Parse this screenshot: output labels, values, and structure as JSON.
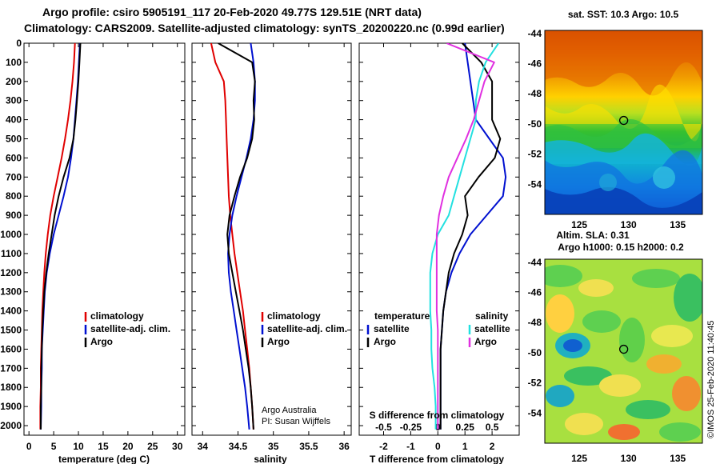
{
  "header": {
    "line1": "Argo profile: csiro 5905191_117 20-Feb-2020 49.77S 129.51E (NRT data)",
    "line2": "Climatology: CARS2009. Satellite-adjusted climatology: synTS_20200220.nc (0.99d earlier)"
  },
  "colors": {
    "climatology": "#e00000",
    "satellite": "#0010d0",
    "argo": "#000000",
    "sat_salinity": "#22e0e0",
    "argo_salinity": "#e030e0"
  },
  "credits": {
    "line1": "Argo Australia",
    "line2": "PI: Susan Wijffels"
  },
  "stamp": "©IMOS 25-Feb-2020 11:40:45",
  "chart_data": [
    {
      "type": "line",
      "id": "temperature",
      "xlabel": "temperature (deg C)",
      "ylabel": "",
      "xlim": [
        -1,
        31.5
      ],
      "ylim": [
        2050,
        0
      ],
      "xticks": [
        "0",
        "5",
        "10",
        "15",
        "20",
        "25",
        "30"
      ],
      "xtick_values": [
        0,
        5,
        10,
        15,
        20,
        25,
        30
      ],
      "yticks": [
        "0",
        "100",
        "200",
        "300",
        "400",
        "500",
        "600",
        "700",
        "800",
        "900",
        "1000",
        "1100",
        "1200",
        "1300",
        "1400",
        "1500",
        "1600",
        "1700",
        "1800",
        "1900",
        "2000"
      ],
      "ytick_values": [
        0,
        100,
        200,
        300,
        400,
        500,
        600,
        700,
        800,
        900,
        1000,
        1100,
        1200,
        1300,
        1400,
        1500,
        1600,
        1700,
        1800,
        1900,
        2000
      ],
      "legend": [
        "climatology",
        "satellite-adj. clim.",
        "Argo"
      ],
      "series": [
        {
          "name": "climatology",
          "color": "#e00000",
          "x": [
            9.3,
            9.1,
            8.8,
            8.4,
            7.9,
            7.3,
            6.6,
            5.8,
            5.0,
            4.3,
            3.8,
            3.4,
            3.1,
            2.9,
            2.7,
            2.6,
            2.5,
            2.4,
            2.4,
            2.3,
            2.3
          ],
          "y": [
            0,
            100,
            200,
            300,
            400,
            500,
            600,
            700,
            800,
            900,
            1000,
            1100,
            1200,
            1300,
            1400,
            1500,
            1600,
            1700,
            1800,
            1900,
            2020
          ]
        },
        {
          "name": "satellite-adj. clim.",
          "color": "#0010d0",
          "x": [
            10.3,
            10.1,
            9.9,
            9.6,
            9.3,
            9.0,
            8.5,
            7.9,
            7.0,
            6.0,
            5.0,
            4.2,
            3.6,
            3.2,
            3.0,
            2.8,
            2.6,
            2.6,
            2.5,
            2.5,
            2.4
          ],
          "y": [
            0,
            100,
            200,
            300,
            400,
            500,
            600,
            700,
            800,
            900,
            1000,
            1100,
            1200,
            1300,
            1400,
            1500,
            1600,
            1700,
            1800,
            1900,
            2020
          ]
        },
        {
          "name": "Argo",
          "color": "#000000",
          "x": [
            10.4,
            10.2,
            10.0,
            9.7,
            9.4,
            9.0,
            8.2,
            7.0,
            6.0,
            5.2,
            4.6,
            4.0,
            3.5,
            3.1,
            2.9,
            2.7,
            2.6,
            2.5,
            2.5,
            2.4,
            2.4
          ],
          "y": [
            0,
            100,
            200,
            300,
            400,
            500,
            600,
            700,
            800,
            900,
            1000,
            1100,
            1200,
            1300,
            1400,
            1500,
            1600,
            1700,
            1800,
            1900,
            2020
          ]
        }
      ]
    },
    {
      "type": "line",
      "id": "salinity",
      "xlabel": "salinity",
      "ylabel": "",
      "xlim": [
        33.85,
        36.1
      ],
      "ylim": [
        2050,
        0
      ],
      "xticks": [
        "34",
        "34.5",
        "35",
        "35.5",
        "36"
      ],
      "xtick_values": [
        34,
        34.5,
        35,
        35.5,
        36
      ],
      "legend": [
        "climatology",
        "satellite-adj. clim.",
        "Argo"
      ],
      "series": [
        {
          "name": "climatology",
          "color": "#e00000",
          "x": [
            34.12,
            34.18,
            34.3,
            34.32,
            34.33,
            34.34,
            34.35,
            34.36,
            34.37,
            34.39,
            34.42,
            34.45,
            34.49,
            34.53,
            34.57,
            34.6,
            34.63,
            34.66,
            34.68,
            34.7,
            34.72
          ],
          "y": [
            0,
            100,
            200,
            300,
            400,
            500,
            600,
            700,
            800,
            900,
            1000,
            1100,
            1200,
            1300,
            1400,
            1500,
            1600,
            1700,
            1800,
            1900,
            2020
          ]
        },
        {
          "name": "satellite-adj. clim.",
          "color": "#0010d0",
          "x": [
            34.68,
            34.72,
            34.74,
            34.74,
            34.72,
            34.68,
            34.62,
            34.55,
            34.48,
            34.42,
            34.38,
            34.36,
            34.37,
            34.4,
            34.44,
            34.48,
            34.52,
            34.56,
            34.6,
            34.63,
            34.66
          ],
          "y": [
            0,
            100,
            200,
            300,
            400,
            500,
            600,
            700,
            800,
            900,
            1000,
            1100,
            1200,
            1300,
            1400,
            1500,
            1600,
            1700,
            1800,
            1900,
            2020
          ]
        },
        {
          "name": "Argo",
          "color": "#000000",
          "x": [
            34.22,
            34.7,
            34.74,
            34.72,
            34.73,
            34.7,
            34.63,
            34.53,
            34.45,
            34.38,
            34.35,
            34.37,
            34.42,
            34.47,
            34.52,
            34.57,
            34.61,
            34.65,
            34.68,
            34.7,
            34.72
          ],
          "y": [
            0,
            100,
            200,
            300,
            400,
            500,
            600,
            700,
            800,
            900,
            1000,
            1100,
            1200,
            1300,
            1400,
            1500,
            1600,
            1700,
            1800,
            1900,
            2020
          ]
        }
      ]
    },
    {
      "type": "line",
      "id": "difference",
      "xlabel": "T difference from climatology",
      "xlabel2": "S difference from climatology",
      "xlim": [
        -2.9,
        3.0
      ],
      "ylim": [
        2050,
        0
      ],
      "xticks": [
        "-2",
        "-1",
        "0",
        "1",
        "2"
      ],
      "xtick_values": [
        -2,
        -1,
        0,
        1,
        2
      ],
      "xticks2": [
        "-0.5",
        "-0.25",
        "0",
        "0.25",
        "0.5"
      ],
      "xtick2_values": [
        -0.5,
        -0.25,
        0,
        0.25,
        0.5
      ],
      "legend_headers": [
        "temperature",
        "salinity"
      ],
      "legend": [
        "satellite",
        "Argo",
        "satellite",
        "Argo"
      ],
      "series": [
        {
          "name": "satellite",
          "group": "temperature",
          "color": "#0010d0",
          "x": [
            1.0,
            1.1,
            1.2,
            1.3,
            1.4,
            1.9,
            2.4,
            2.5,
            2.4,
            1.8,
            1.2,
            0.8,
            0.5,
            0.3,
            0.2,
            0.15,
            0.1,
            0.1,
            0.1,
            0.1,
            0.1
          ],
          "y": [
            0,
            100,
            200,
            300,
            400,
            500,
            600,
            700,
            800,
            900,
            1000,
            1100,
            1200,
            1300,
            1400,
            1500,
            1600,
            1700,
            1800,
            1900,
            2020
          ]
        },
        {
          "name": "Argo",
          "group": "temperature",
          "color": "#000000",
          "x": [
            0.9,
            1.6,
            2.0,
            2.0,
            2.0,
            2.3,
            2.1,
            1.5,
            1.0,
            1.1,
            0.9,
            0.6,
            0.4,
            0.3,
            0.2,
            0.15,
            0.1,
            0.1,
            0.1,
            0.1,
            0.1
          ],
          "y": [
            0,
            100,
            200,
            300,
            400,
            500,
            600,
            700,
            800,
            900,
            1000,
            1100,
            1200,
            1300,
            1400,
            1500,
            1600,
            1700,
            1800,
            1900,
            2020
          ]
        },
        {
          "name": "satellite",
          "group": "salinity",
          "color": "#22e0e0",
          "x": [
            0.56,
            0.44,
            0.38,
            0.35,
            0.35,
            0.3,
            0.25,
            0.2,
            0.15,
            0.1,
            0.0,
            -0.05,
            -0.07,
            -0.07,
            -0.07,
            -0.06,
            -0.06,
            -0.05,
            -0.03,
            -0.02,
            -0.02
          ],
          "y": [
            0,
            100,
            200,
            300,
            400,
            500,
            600,
            700,
            800,
            900,
            1000,
            1100,
            1200,
            1300,
            1400,
            1500,
            1600,
            1700,
            1800,
            1900,
            2020
          ]
        },
        {
          "name": "Argo",
          "group": "salinity",
          "color": "#e030e0",
          "x": [
            0.08,
            0.52,
            0.43,
            0.38,
            0.33,
            0.26,
            0.18,
            0.1,
            0.05,
            0.01,
            -0.01,
            -0.01,
            -0.01,
            -0.01,
            -0.01,
            0.0,
            0.0,
            0.0,
            0.0,
            0.0,
            0.0
          ],
          "y": [
            0,
            100,
            200,
            300,
            400,
            500,
            600,
            700,
            800,
            900,
            1000,
            1100,
            1200,
            1300,
            1400,
            1500,
            1600,
            1700,
            1800,
            1900,
            2020
          ]
        }
      ]
    },
    {
      "type": "heatmap",
      "id": "sst-map",
      "title": "sat. SST: 10.3 Argo: 10.5",
      "xticks": [
        "125",
        "130",
        "135"
      ],
      "xtick_values": [
        125,
        130,
        135
      ],
      "yticks": [
        "-44",
        "-46",
        "-48",
        "-50",
        "-52",
        "-54"
      ],
      "ytick_values": [
        -44,
        -46,
        -48,
        -50,
        -52,
        -54
      ],
      "xlim": [
        121.5,
        137.5
      ],
      "ylim": [
        -56,
        -43.8
      ],
      "marker": {
        "lon": 129.51,
        "lat": -49.77
      }
    },
    {
      "type": "heatmap",
      "id": "sla-map",
      "title": "Altim. SLA: 0.31",
      "subtitle": "Argo h1000: 0.15 h2000: 0.2",
      "xticks": [
        "125",
        "130",
        "135"
      ],
      "xtick_values": [
        125,
        130,
        135
      ],
      "yticks": [
        "-44",
        "-46",
        "-48",
        "-50",
        "-52",
        "-54"
      ],
      "ytick_values": [
        -44,
        -46,
        -48,
        -50,
        -52,
        -54
      ],
      "xlim": [
        121.5,
        137.5
      ],
      "ylim": [
        -56,
        -43.8
      ],
      "marker": {
        "lon": 129.51,
        "lat": -49.77
      }
    }
  ]
}
